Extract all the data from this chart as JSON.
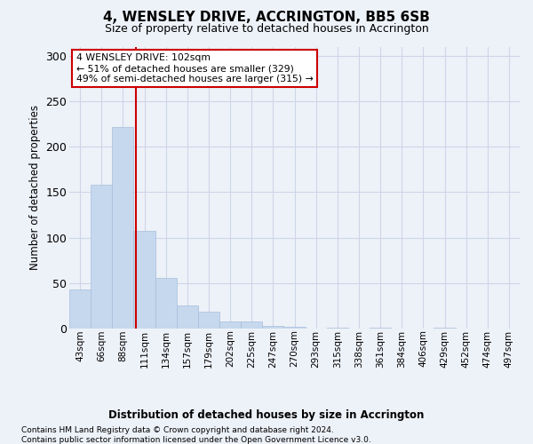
{
  "title": "4, WENSLEY DRIVE, ACCRINGTON, BB5 6SB",
  "subtitle": "Size of property relative to detached houses in Accrington",
  "xlabel": "Distribution of detached houses by size in Accrington",
  "ylabel": "Number of detached properties",
  "footnote1": "Contains HM Land Registry data © Crown copyright and database right 2024.",
  "footnote2": "Contains public sector information licensed under the Open Government Licence v3.0.",
  "bin_labels": [
    "43sqm",
    "66sqm",
    "88sqm",
    "111sqm",
    "134sqm",
    "157sqm",
    "179sqm",
    "202sqm",
    "225sqm",
    "247sqm",
    "270sqm",
    "293sqm",
    "315sqm",
    "338sqm",
    "361sqm",
    "384sqm",
    "406sqm",
    "429sqm",
    "452sqm",
    "474sqm",
    "497sqm"
  ],
  "bar_values": [
    43,
    158,
    222,
    107,
    56,
    25,
    19,
    8,
    8,
    3,
    2,
    0,
    1,
    0,
    1,
    0,
    0,
    1,
    0,
    0,
    0
  ],
  "bar_color": "#c5d8ed",
  "bar_edge_color": "#a8bedb",
  "grid_color": "#cdd6e8",
  "background_color": "#edf1f8",
  "red_line_x": 2.61,
  "annotation_text": "4 WENSLEY DRIVE: 102sqm\n← 51% of detached houses are smaller (329)\n49% of semi-detached houses are larger (315) →",
  "annotation_box_color": "#ffffff",
  "annotation_box_edge": "#cc0000",
  "ylim": [
    0,
    310
  ],
  "yticks": [
    0,
    50,
    100,
    150,
    200,
    250,
    300
  ]
}
